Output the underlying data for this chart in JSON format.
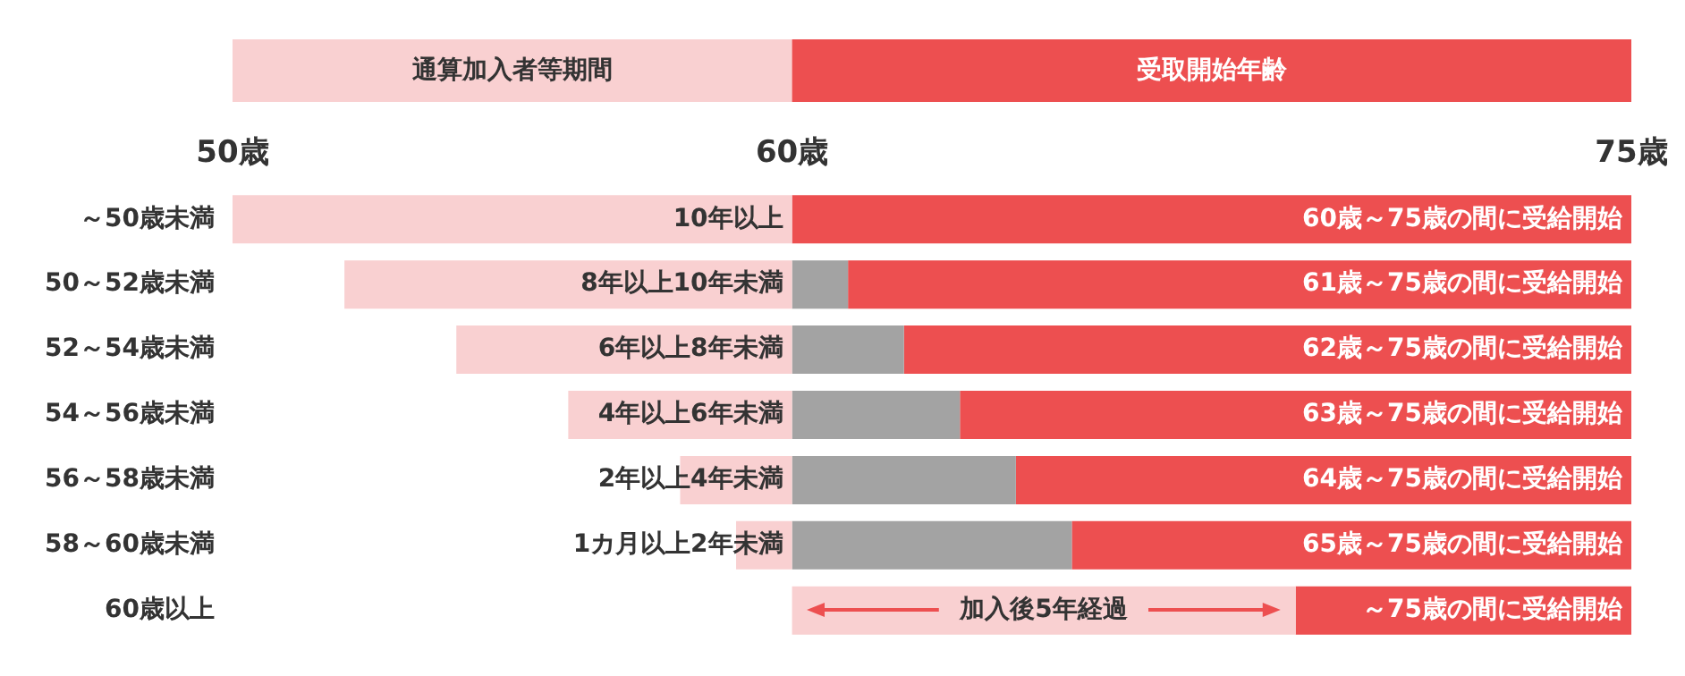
{
  "chart_data": {
    "type": "bar",
    "orientation": "horizontal",
    "categories": [
      "～50歳未満",
      "50～52歳未満",
      "52～54歳未満",
      "54～56歳未満",
      "56～58歳未満",
      "58～60歳未満",
      "60歳以上"
    ],
    "series": [
      {
        "color": "#f9d0d1",
        "base": [
          50,
          52,
          54,
          56,
          58,
          59,
          null
        ],
        "values": [
          10,
          8,
          6,
          4,
          2,
          1,
          null
        ]
      },
      {
        "colors": [
          null,
          "#a3a3a3",
          "#a3a3a3",
          "#a3a3a3",
          "#a3a3a3",
          "#a3a3a3",
          "#f9d0d1"
        ],
        "base": [
          null,
          60,
          60,
          60,
          60,
          60,
          60
        ],
        "values": [
          null,
          1,
          2,
          3,
          4,
          5,
          9
        ]
      },
      {
        "color": "#ed4f50",
        "base": [
          60,
          61,
          62,
          63,
          64,
          65,
          69
        ],
        "values": [
          15,
          14,
          13,
          12,
          11,
          10,
          6
        ]
      }
    ],
    "xlim": [
      50,
      75
    ],
    "xticks": [
      {
        "value": 50,
        "label": "50歳"
      },
      {
        "value": 60,
        "label": "60歳"
      },
      {
        "value": 75,
        "label": "75歳"
      }
    ],
    "annotations": [
      "通算加入者等期間",
      "受取開始年齢",
      {
        "text": "10年以上",
        "x": 60,
        "y": "～50歳未満"
      },
      {
        "text": "8年以上10年未満",
        "x": 60,
        "y": "50～52歳未満"
      },
      {
        "text": "6年以上8年未満",
        "x": 60,
        "y": "52～54歳未満"
      },
      {
        "text": "4年以上6年未満",
        "x": 60,
        "y": "54～56歳未満"
      },
      {
        "text": "2年以上4年未満",
        "x": 60,
        "y": "56～58歳未満"
      },
      {
        "text": "1カ月以上2年未満",
        "x": 60,
        "y": "58～60歳未満"
      },
      {
        "text": "60歳～75歳の間に受給開始",
        "x": 75,
        "y": "～50歳未満"
      },
      {
        "text": "61歳～75歳の間に受給開始",
        "x": 75,
        "y": "50～52歳未満"
      },
      {
        "text": "62歳～75歳の間に受給開始",
        "x": 75,
        "y": "52～54歳未満"
      },
      {
        "text": "63歳～75歳の間に受給開始",
        "x": 75,
        "y": "54～56歳未満"
      },
      {
        "text": "64歳～75歳の間に受給開始",
        "x": 75,
        "y": "56～58歳未満"
      },
      {
        "text": "65歳～75歳の間に受給開始",
        "x": 75,
        "y": "58～60歳未満"
      },
      {
        "text": "加入後5年経過",
        "x": 64.5,
        "y": "60歳以上"
      },
      {
        "text": "～75歳の間に受給開始",
        "x": 75,
        "y": "60歳以上"
      }
    ],
    "grid": false,
    "legend": false
  }
}
